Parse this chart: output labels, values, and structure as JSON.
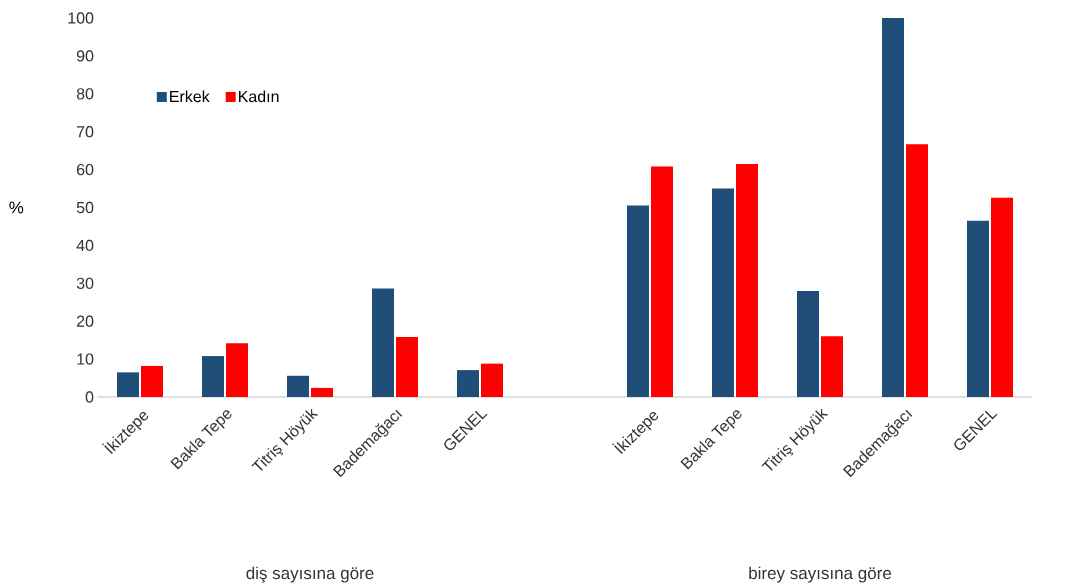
{
  "chart_data": {
    "type": "bar",
    "ylabel": "%",
    "categories": [
      "İkiztepe",
      "Bakla Tepe",
      "Titriş Höyük",
      "Bademağacı",
      "GENEL",
      null,
      "İkiztepe",
      "Bakla Tepe",
      "Titriş Höyük",
      "Bademağacı",
      "GENEL"
    ],
    "series": [
      {
        "name": "Erkek",
        "color": "#1f4e79",
        "values": [
          6.5,
          10.8,
          5.6,
          28.6,
          7.1,
          null,
          50.5,
          55,
          28,
          100,
          46.5
        ]
      },
      {
        "name": "Kadın",
        "color": "#ff0000",
        "values": [
          8.2,
          14.2,
          2.4,
          15.8,
          8.8,
          null,
          60.8,
          61.5,
          16,
          66.7,
          52.6
        ]
      }
    ],
    "annotations": [
      "diş sayısına göre",
      "birey sayısına göre"
    ],
    "ylim": [
      0,
      100
    ],
    "yticks": [
      0,
      10,
      20,
      30,
      40,
      50,
      60,
      70,
      80,
      90,
      100
    ],
    "legend": "top left"
  }
}
